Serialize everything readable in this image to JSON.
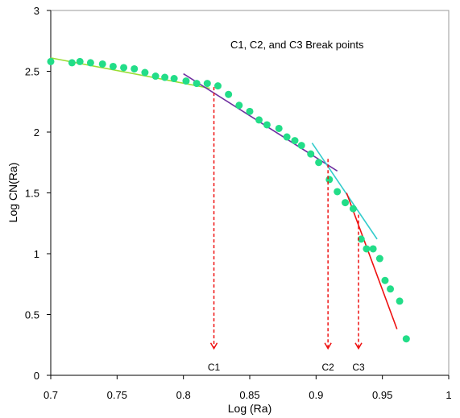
{
  "chart_data": {
    "type": "scatter",
    "title": "",
    "xlabel": "Log (Ra)",
    "ylabel": "Log CN(Ra)",
    "xlim": [
      0.7,
      1.0
    ],
    "ylim": [
      0,
      3
    ],
    "xticks": [
      "0.7",
      "0.75",
      "0.8",
      "0.85",
      "0.9",
      "0.95",
      "1"
    ],
    "yticks": [
      "0",
      "0.5",
      "1",
      "1.5",
      "2",
      "2.5",
      "3"
    ],
    "grid": false,
    "legend": "none",
    "point_color": "#22dd88",
    "points": [
      {
        "x": 0.7,
        "y": 2.58
      },
      {
        "x": 0.716,
        "y": 2.57
      },
      {
        "x": 0.722,
        "y": 2.58
      },
      {
        "x": 0.73,
        "y": 2.57
      },
      {
        "x": 0.739,
        "y": 2.56
      },
      {
        "x": 0.747,
        "y": 2.54
      },
      {
        "x": 0.755,
        "y": 2.53
      },
      {
        "x": 0.763,
        "y": 2.52
      },
      {
        "x": 0.771,
        "y": 2.49
      },
      {
        "x": 0.779,
        "y": 2.46
      },
      {
        "x": 0.786,
        "y": 2.45
      },
      {
        "x": 0.793,
        "y": 2.44
      },
      {
        "x": 0.802,
        "y": 2.42
      },
      {
        "x": 0.81,
        "y": 2.4
      },
      {
        "x": 0.818,
        "y": 2.4
      },
      {
        "x": 0.826,
        "y": 2.38
      },
      {
        "x": 0.834,
        "y": 2.31
      },
      {
        "x": 0.842,
        "y": 2.22
      },
      {
        "x": 0.85,
        "y": 2.17
      },
      {
        "x": 0.857,
        "y": 2.1
      },
      {
        "x": 0.863,
        "y": 2.06
      },
      {
        "x": 0.872,
        "y": 2.03
      },
      {
        "x": 0.878,
        "y": 1.96
      },
      {
        "x": 0.884,
        "y": 1.93
      },
      {
        "x": 0.889,
        "y": 1.89
      },
      {
        "x": 0.896,
        "y": 1.82
      },
      {
        "x": 0.902,
        "y": 1.75
      },
      {
        "x": 0.91,
        "y": 1.61
      },
      {
        "x": 0.916,
        "y": 1.51
      },
      {
        "x": 0.922,
        "y": 1.42
      },
      {
        "x": 0.928,
        "y": 1.37
      },
      {
        "x": 0.934,
        "y": 1.12
      },
      {
        "x": 0.938,
        "y": 1.04
      },
      {
        "x": 0.943,
        "y": 1.04
      },
      {
        "x": 0.948,
        "y": 0.96
      },
      {
        "x": 0.952,
        "y": 0.78
      },
      {
        "x": 0.956,
        "y": 0.71
      },
      {
        "x": 0.963,
        "y": 0.61
      },
      {
        "x": 0.968,
        "y": 0.3
      }
    ],
    "fit_lines": [
      {
        "color": "#99dd33",
        "from": {
          "x": 0.7,
          "y": 2.61
        },
        "to": {
          "x": 0.82,
          "y": 2.36
        }
      },
      {
        "color": "#7030a0",
        "from": {
          "x": 0.8,
          "y": 2.48
        },
        "to": {
          "x": 0.916,
          "y": 1.68
        }
      },
      {
        "color": "#33cccc",
        "from": {
          "x": 0.897,
          "y": 1.91
        },
        "to": {
          "x": 0.946,
          "y": 1.12
        }
      },
      {
        "color": "#ee1111",
        "from": {
          "x": 0.923,
          "y": 1.5
        },
        "to": {
          "x": 0.961,
          "y": 0.38
        }
      }
    ],
    "annotation": "C1, C2, and C3 Break  points",
    "break_points": [
      {
        "label": "C1",
        "x": 0.823,
        "y_top": 2.37
      },
      {
        "label": "C2",
        "x": 0.909,
        "y_top": 1.78
      },
      {
        "label": "C3",
        "x": 0.932,
        "y_top": 1.32
      }
    ]
  }
}
